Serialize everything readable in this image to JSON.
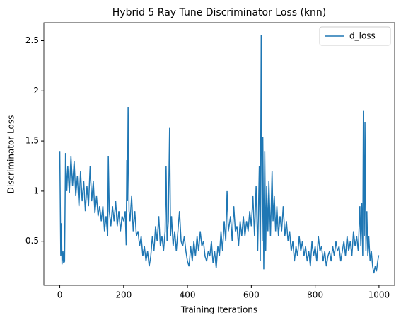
{
  "chart_data": {
    "type": "line",
    "title": "Hybrid 5 Ray Tune Discriminator Loss (knn)",
    "xlabel": "Training Iterations",
    "ylabel": "Discriminator Loss",
    "legend": "upper right",
    "x": [
      0,
      3,
      5,
      7,
      10,
      12,
      15,
      18,
      22,
      25,
      30,
      35,
      40,
      45,
      50,
      55,
      60,
      65,
      70,
      75,
      80,
      85,
      90,
      95,
      100,
      105,
      110,
      115,
      120,
      125,
      130,
      135,
      140,
      145,
      150,
      152,
      155,
      160,
      165,
      170,
      175,
      180,
      185,
      190,
      195,
      200,
      205,
      208,
      210,
      212,
      214,
      217,
      220,
      225,
      230,
      235,
      240,
      245,
      250,
      255,
      260,
      265,
      270,
      275,
      280,
      285,
      290,
      295,
      300,
      305,
      310,
      315,
      320,
      325,
      330,
      333,
      336,
      340,
      344,
      347,
      350,
      355,
      360,
      365,
      370,
      375,
      380,
      385,
      390,
      395,
      400,
      405,
      410,
      415,
      420,
      425,
      430,
      435,
      440,
      445,
      450,
      455,
      460,
      465,
      470,
      475,
      480,
      485,
      490,
      495,
      500,
      505,
      510,
      515,
      520,
      524,
      528,
      535,
      540,
      545,
      550,
      555,
      560,
      565,
      570,
      575,
      580,
      585,
      590,
      595,
      600,
      605,
      610,
      615,
      620,
      625,
      628,
      631,
      634,
      636,
      639,
      642,
      645,
      648,
      652,
      655,
      660,
      665,
      668,
      672,
      676,
      680,
      685,
      690,
      695,
      700,
      705,
      710,
      715,
      720,
      725,
      730,
      735,
      740,
      745,
      750,
      755,
      760,
      765,
      770,
      775,
      780,
      785,
      790,
      795,
      800,
      805,
      810,
      815,
      820,
      825,
      830,
      835,
      840,
      845,
      850,
      855,
      860,
      865,
      870,
      875,
      880,
      885,
      890,
      895,
      900,
      905,
      910,
      915,
      920,
      925,
      930,
      935,
      940,
      943,
      946,
      949,
      951,
      954,
      956,
      959,
      962,
      965,
      968,
      972,
      976,
      980,
      984,
      988,
      992,
      996,
      999
    ],
    "series": [
      {
        "name": "d_loss",
        "color": "#1f77b4",
        "values": [
          1.4,
          0.35,
          0.68,
          0.27,
          0.4,
          0.28,
          0.3,
          1.38,
          1.0,
          1.25,
          0.98,
          1.35,
          1.05,
          1.3,
          0.95,
          1.15,
          0.85,
          1.2,
          0.9,
          1.1,
          0.8,
          1.05,
          0.85,
          1.25,
          0.9,
          1.1,
          0.78,
          0.95,
          0.75,
          0.85,
          0.7,
          0.85,
          0.6,
          0.75,
          0.55,
          1.35,
          0.8,
          0.65,
          0.85,
          0.7,
          0.9,
          0.65,
          0.8,
          0.6,
          0.75,
          0.7,
          0.8,
          0.46,
          1.31,
          0.9,
          1.84,
          0.8,
          0.7,
          0.95,
          0.6,
          0.8,
          0.55,
          0.6,
          0.45,
          0.55,
          0.35,
          0.45,
          0.3,
          0.4,
          0.25,
          0.35,
          0.55,
          0.4,
          0.65,
          0.5,
          0.75,
          0.45,
          0.55,
          0.4,
          0.6,
          1.25,
          0.5,
          0.7,
          1.63,
          0.55,
          0.75,
          0.45,
          0.6,
          0.4,
          0.6,
          0.8,
          0.5,
          0.45,
          0.55,
          0.4,
          0.3,
          0.25,
          0.45,
          0.3,
          0.5,
          0.35,
          0.55,
          0.4,
          0.6,
          0.45,
          0.5,
          0.35,
          0.3,
          0.4,
          0.35,
          0.5,
          0.28,
          0.4,
          0.23,
          0.45,
          0.35,
          0.6,
          0.4,
          0.7,
          0.5,
          1.0,
          0.6,
          0.75,
          0.5,
          0.85,
          0.6,
          0.65,
          0.45,
          0.7,
          0.55,
          0.75,
          0.55,
          0.7,
          0.6,
          0.8,
          0.65,
          0.95,
          0.55,
          1.05,
          0.4,
          1.25,
          0.3,
          2.56,
          0.5,
          1.54,
          0.22,
          1.4,
          0.4,
          1.05,
          0.6,
          1.1,
          0.55,
          1.2,
          0.7,
          0.95,
          0.6,
          0.85,
          0.55,
          0.75,
          0.6,
          0.85,
          0.55,
          0.7,
          0.5,
          0.6,
          0.4,
          0.5,
          0.3,
          0.45,
          0.35,
          0.55,
          0.4,
          0.5,
          0.35,
          0.45,
          0.3,
          0.4,
          0.25,
          0.5,
          0.35,
          0.45,
          0.3,
          0.55,
          0.4,
          0.45,
          0.3,
          0.4,
          0.25,
          0.35,
          0.4,
          0.3,
          0.45,
          0.35,
          0.5,
          0.4,
          0.45,
          0.3,
          0.4,
          0.5,
          0.35,
          0.55,
          0.4,
          0.5,
          0.35,
          0.6,
          0.45,
          0.55,
          0.4,
          0.85,
          0.45,
          0.88,
          0.35,
          1.8,
          0.55,
          1.69,
          0.4,
          0.8,
          0.35,
          0.55,
          0.3,
          0.4,
          0.25,
          0.18,
          0.25,
          0.2,
          0.3,
          0.36
        ]
      }
    ],
    "xlim": [
      -49.95,
      1048.95
    ],
    "xticks": [
      0,
      200,
      400,
      600,
      800,
      1000
    ],
    "ylim": [
      0.06,
      2.68
    ],
    "yticks": [
      0.5,
      1.0,
      1.5,
      2.0,
      2.5
    ]
  }
}
